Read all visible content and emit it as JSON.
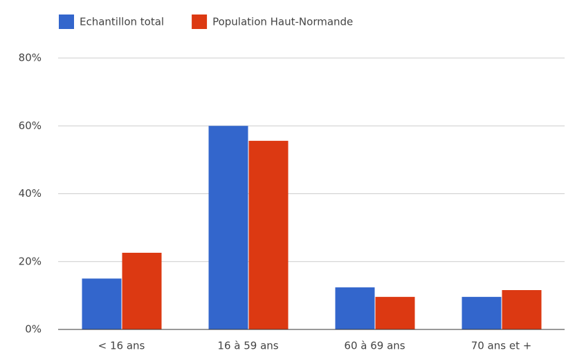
{
  "chart_data": {
    "type": "bar",
    "categories": [
      "< 16 ans",
      "16 à 59 ans",
      "60 à 69 ans",
      "70 ans et +"
    ],
    "series": [
      {
        "name": "Echantillon total",
        "color": "#3366cc",
        "values": [
          15,
          60,
          12.4,
          9.6
        ]
      },
      {
        "name": "Population Haut-Normande",
        "color": "#dc3912",
        "values": [
          22.6,
          55.6,
          9.6,
          11.6
        ]
      }
    ],
    "ylim": [
      0,
      80
    ],
    "yticks": [
      {
        "value": 0,
        "label": "0%"
      },
      {
        "value": 20,
        "label": "20%"
      },
      {
        "value": 40,
        "label": "40%"
      },
      {
        "value": 60,
        "label": "60%"
      },
      {
        "value": 80,
        "label": "80%"
      }
    ],
    "grid": true,
    "legend": "top"
  }
}
